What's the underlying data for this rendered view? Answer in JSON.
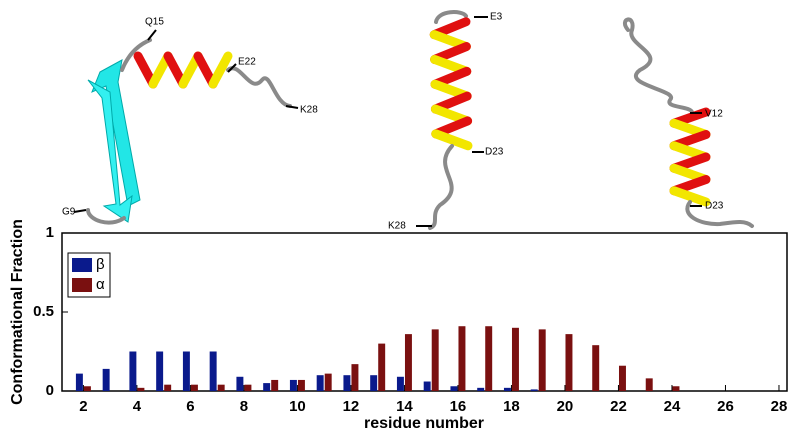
{
  "chart_data": {
    "type": "bar",
    "xlabel": "residue number",
    "ylabel": "Conformational Fraction",
    "x": [
      2,
      3,
      4,
      5,
      6,
      7,
      8,
      9,
      10,
      11,
      12,
      13,
      14,
      15,
      16,
      17,
      18,
      19,
      20,
      21,
      22,
      23,
      24
    ],
    "series": [
      {
        "name": "β",
        "color": "#0a1a8c",
        "values": [
          0.11,
          0.14,
          0.25,
          0.25,
          0.25,
          0.25,
          0.09,
          0.05,
          0.07,
          0.1,
          0.1,
          0.1,
          0.09,
          0.06,
          0.03,
          0.02,
          0.02,
          0.01,
          0,
          0,
          0,
          0,
          0
        ]
      },
      {
        "name": "α",
        "color": "#7a1010",
        "values": [
          0.03,
          0,
          0.02,
          0.04,
          0.04,
          0.04,
          0.04,
          0.07,
          0.07,
          0.11,
          0.17,
          0.3,
          0.36,
          0.39,
          0.41,
          0.41,
          0.4,
          0.39,
          0.36,
          0.29,
          0.16,
          0.08,
          0.03
        ]
      }
    ],
    "xlim": [
      1.2,
      28.3
    ],
    "xticks": [
      2,
      4,
      6,
      8,
      10,
      12,
      14,
      16,
      18,
      20,
      22,
      24,
      26,
      28
    ],
    "ylim": [
      0,
      1
    ],
    "yticks": [
      0,
      0.5,
      1
    ],
    "legend": "upper-left",
    "annotations": [
      "Q15",
      "E22",
      "K28",
      "G9",
      "E3",
      "D23",
      "K28",
      "V12",
      "D23"
    ]
  }
}
